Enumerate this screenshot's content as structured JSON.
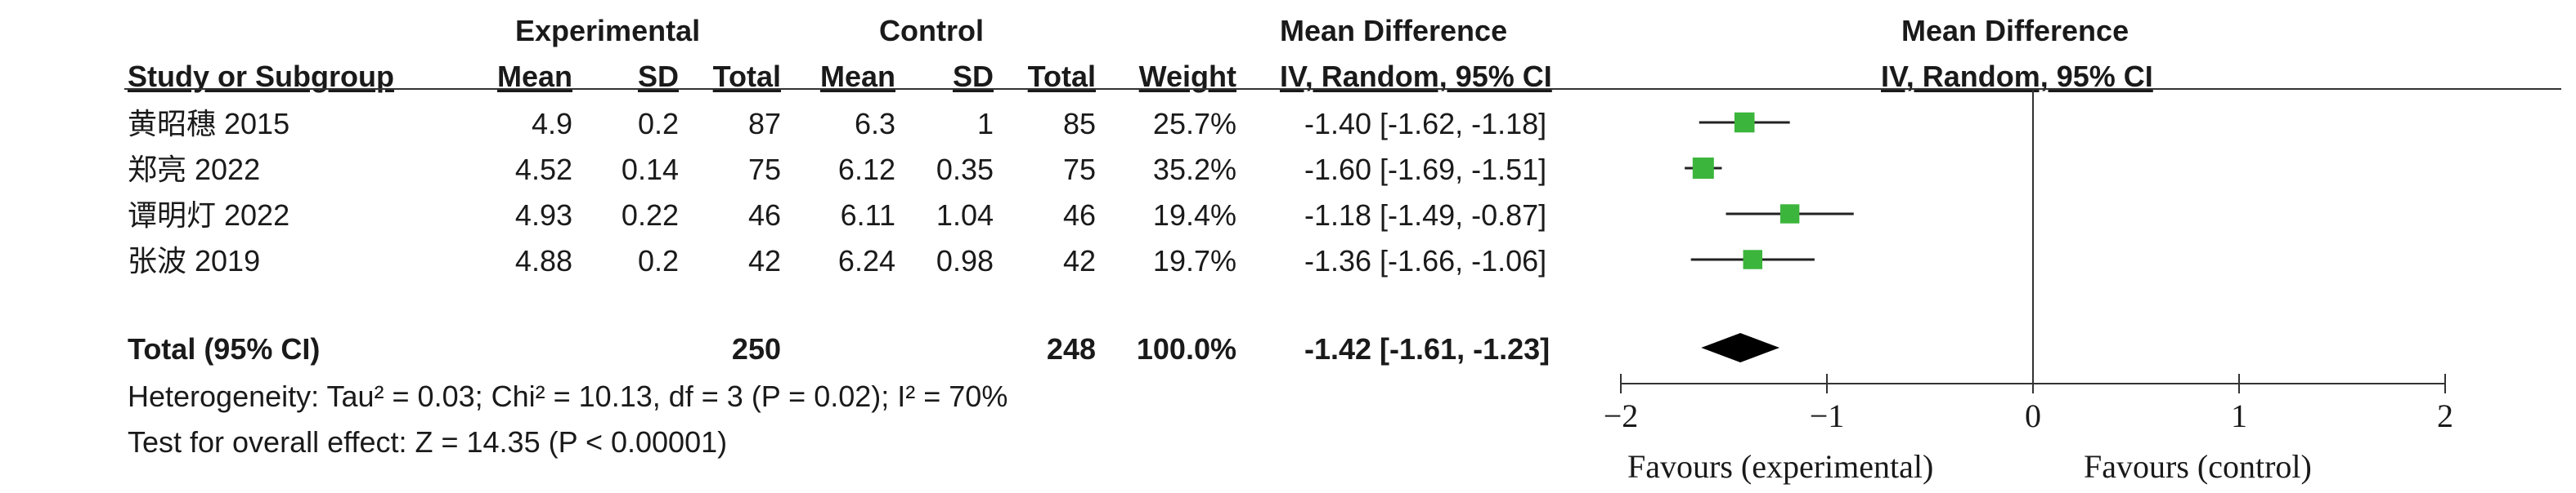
{
  "header": {
    "group1": "Experimental",
    "group2": "Control",
    "md_col": "Mean Difference",
    "md_col_sub": "IV, Random, 95% CI",
    "plot_col": "Mean Difference",
    "plot_col_sub": "IV, Random, 95% CI",
    "study": "Study or Subgroup",
    "mean1": "Mean",
    "sd1": "SD",
    "total1": "Total",
    "mean2": "Mean",
    "sd2": "SD",
    "total2": "Total",
    "weight": "Weight"
  },
  "studies": [
    {
      "name": "黄昭穗 2015",
      "mean1": "4.9",
      "sd1": "0.2",
      "n1": "87",
      "mean2": "6.3",
      "sd2": "1",
      "n2": "85",
      "weight": "25.7%",
      "ci": "-1.40 [-1.62, -1.18]"
    },
    {
      "name": "郑亮 2022",
      "mean1": "4.52",
      "sd1": "0.14",
      "n1": "75",
      "mean2": "6.12",
      "sd2": "0.35",
      "n2": "75",
      "weight": "35.2%",
      "ci": "-1.60 [-1.69, -1.51]"
    },
    {
      "name": "谭明灯 2022",
      "mean1": "4.93",
      "sd1": "0.22",
      "n1": "46",
      "mean2": "6.11",
      "sd2": "1.04",
      "n2": "46",
      "weight": "19.4%",
      "ci": "-1.18 [-1.49, -0.87]"
    },
    {
      "name": "张波 2019",
      "mean1": "4.88",
      "sd1": "0.2",
      "n1": "42",
      "mean2": "6.24",
      "sd2": "0.98",
      "n2": "42",
      "weight": "19.7%",
      "ci": "-1.36 [-1.66, -1.06]"
    }
  ],
  "total": {
    "label": "Total (95% CI)",
    "n1": "250",
    "n2": "248",
    "weight": "100.0%",
    "ci": "-1.42 [-1.61, -1.23]"
  },
  "heterogeneity": "Heterogeneity: Tau² = 0.03; Chi² = 10.13, df = 3 (P = 0.02); I² = 70%",
  "overall_effect": "Test for overall effect: Z = 14.35 (P < 0.00001)",
  "axis": {
    "ticks": [
      "−2",
      "−1",
      "0",
      "1",
      "2"
    ],
    "favours_left": "Favours (experimental)",
    "favours_right": "Favours (control)"
  },
  "chart_data": {
    "type": "scatter",
    "title": "",
    "xlabel": "",
    "ylabel": "",
    "xlim": [
      -2,
      2
    ],
    "x_ticks": [
      -2,
      -1,
      0,
      1,
      2
    ],
    "marker_color": "#3cb53c",
    "diamond_color": "#000000",
    "series": [
      {
        "values": [
          {
            "study": "黄昭穗 2015",
            "md": -1.4,
            "lower": -1.62,
            "upper": -1.18,
            "weight": 25.7
          },
          {
            "study": "郑亮 2022",
            "md": -1.6,
            "lower": -1.69,
            "upper": -1.51,
            "weight": 35.2
          },
          {
            "study": "谭明灯 2022",
            "md": -1.18,
            "lower": -1.49,
            "upper": -0.87,
            "weight": 19.4
          },
          {
            "study": "张波 2019",
            "md": -1.36,
            "lower": -1.66,
            "upper": -1.06,
            "weight": 19.7
          }
        ]
      }
    ],
    "pooled": {
      "md": -1.42,
      "lower": -1.61,
      "upper": -1.23
    }
  }
}
